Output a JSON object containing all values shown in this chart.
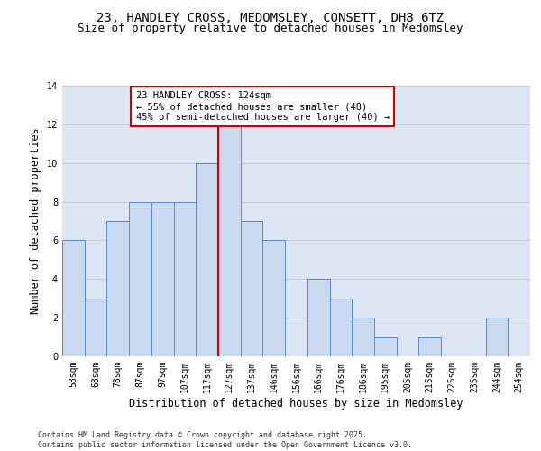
{
  "title": "23, HANDLEY CROSS, MEDOMSLEY, CONSETT, DH8 6TZ",
  "subtitle": "Size of property relative to detached houses in Medomsley",
  "xlabel": "Distribution of detached houses by size in Medomsley",
  "ylabel": "Number of detached properties",
  "categories": [
    "58sqm",
    "68sqm",
    "78sqm",
    "87sqm",
    "97sqm",
    "107sqm",
    "117sqm",
    "127sqm",
    "137sqm",
    "146sqm",
    "156sqm",
    "166sqm",
    "176sqm",
    "186sqm",
    "195sqm",
    "205sqm",
    "215sqm",
    "225sqm",
    "235sqm",
    "244sqm",
    "254sqm"
  ],
  "values": [
    6,
    3,
    7,
    8,
    8,
    8,
    10,
    12,
    7,
    6,
    0,
    4,
    3,
    2,
    1,
    0,
    1,
    0,
    0,
    2,
    0
  ],
  "bar_color": "#c9d9f0",
  "bar_edge_color": "#5b8ac9",
  "vline_x_index": 6.5,
  "vline_color": "#cc0000",
  "annotation_text": "23 HANDLEY CROSS: 124sqm\n← 55% of detached houses are smaller (48)\n45% of semi-detached houses are larger (40) →",
  "annotation_box_color": "#ffffff",
  "annotation_box_edge": "#cc0000",
  "ylim": [
    0,
    14
  ],
  "yticks": [
    0,
    2,
    4,
    6,
    8,
    10,
    12,
    14
  ],
  "grid_color": "#cccccc",
  "bg_color": "#dde6f5",
  "footer_text": "Contains HM Land Registry data © Crown copyright and database right 2025.\nContains public sector information licensed under the Open Government Licence v3.0.",
  "title_fontsize": 10,
  "subtitle_fontsize": 9,
  "axis_label_fontsize": 8.5,
  "tick_fontsize": 7,
  "annotation_fontsize": 7.5,
  "footer_fontsize": 6
}
